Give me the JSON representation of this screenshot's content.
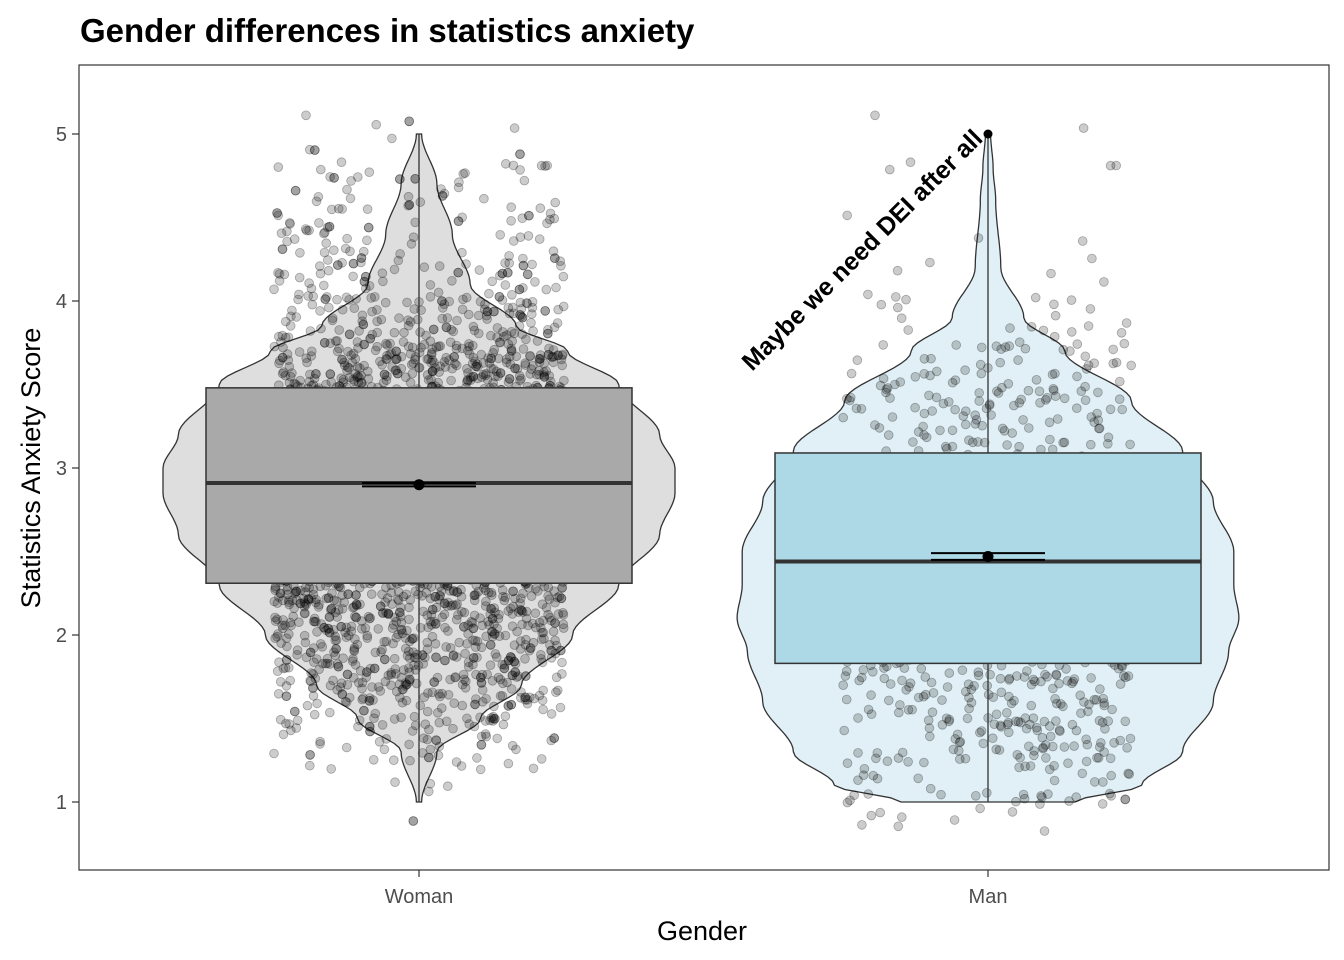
{
  "chart_data": {
    "type": "violin",
    "title": "Gender differences in statistics anxiety",
    "xlabel": "Gender",
    "ylabel": "Statistics Anxiety Score",
    "categories": [
      "Woman",
      "Man"
    ],
    "ylim": [
      0.6,
      5.4
    ],
    "yticks": [
      1,
      2,
      3,
      4,
      5
    ],
    "grid": false,
    "legend": "none",
    "series": [
      {
        "category": "Woman",
        "fill": "#dedede",
        "box_fill": "#a9a9a9",
        "point_count": 3000,
        "min": 1.0,
        "q1": 2.31,
        "median": 2.91,
        "q3": 3.48,
        "max": 5.0,
        "mean": 2.9,
        "mean_ci": [
          2.89,
          2.91
        ],
        "density": [
          [
            1.0,
            0.01
          ],
          [
            1.3,
            0.07
          ],
          [
            1.5,
            0.24
          ],
          [
            1.7,
            0.4
          ],
          [
            2.0,
            0.6
          ],
          [
            2.3,
            0.78
          ],
          [
            2.6,
            0.94
          ],
          [
            2.85,
            1.0
          ],
          [
            3.0,
            1.0
          ],
          [
            3.2,
            0.94
          ],
          [
            3.5,
            0.78
          ],
          [
            3.7,
            0.58
          ],
          [
            3.85,
            0.38
          ],
          [
            4.1,
            0.2
          ],
          [
            4.4,
            0.13
          ],
          [
            4.7,
            0.07
          ],
          [
            5.0,
            0.01
          ]
        ]
      },
      {
        "category": "Man",
        "fill": "#e0f0f6",
        "box_fill": "#add8e6",
        "point_count": 900,
        "min": 1.0,
        "q1": 1.83,
        "median": 2.44,
        "q3": 3.09,
        "max": 5.0,
        "mean": 2.47,
        "mean_ci": [
          2.45,
          2.49
        ],
        "density": [
          [
            1.0,
            0.34
          ],
          [
            1.1,
            0.6
          ],
          [
            1.3,
            0.76
          ],
          [
            1.6,
            0.88
          ],
          [
            1.9,
            0.94
          ],
          [
            2.1,
            0.98
          ],
          [
            2.3,
            0.96
          ],
          [
            2.5,
            0.96
          ],
          [
            2.8,
            0.88
          ],
          [
            3.1,
            0.76
          ],
          [
            3.4,
            0.56
          ],
          [
            3.7,
            0.3
          ],
          [
            3.9,
            0.14
          ],
          [
            4.2,
            0.05
          ],
          [
            4.6,
            0.03
          ],
          [
            4.8,
            0.02
          ],
          [
            5.0,
            0.01
          ]
        ]
      }
    ],
    "annotation": {
      "text": "Maybe we need DEI after all",
      "x": "Man",
      "y": 5.0,
      "angle": 45
    }
  }
}
